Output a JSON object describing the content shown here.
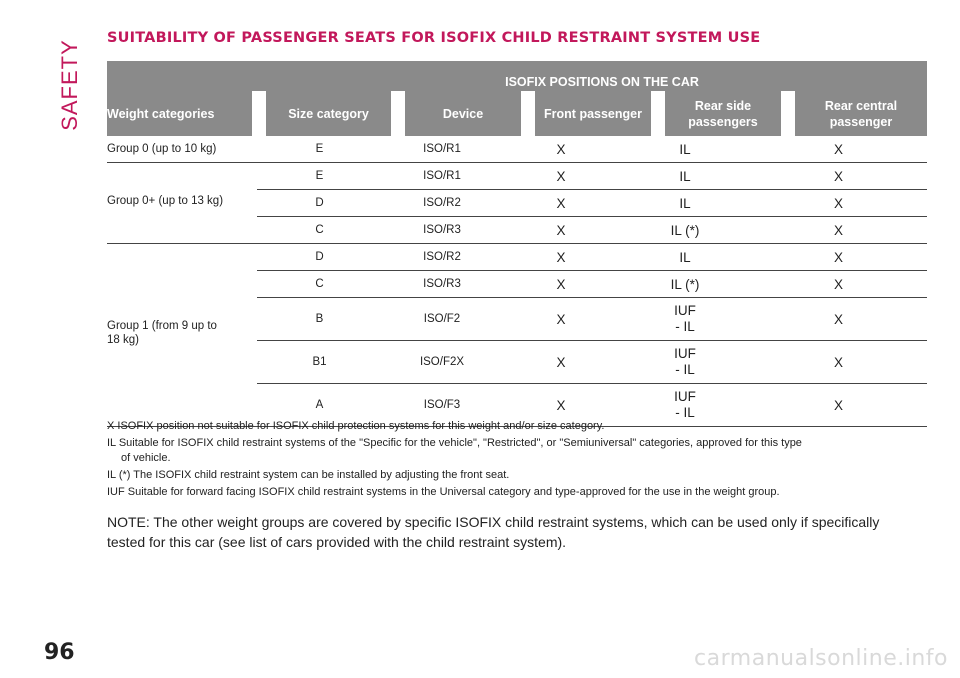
{
  "section_tab": "SAFETY",
  "page_number": "96",
  "watermark": "carmanualsonline.info",
  "title": "SUITABILITY OF PASSENGER SEATS FOR ISOFIX CHILD RESTRAINT SYSTEM USE",
  "table": {
    "band_title": "ISOFIX POSITIONS ON THE CAR",
    "headers": {
      "weight": "Weight categories",
      "size": "Size category",
      "device": "Device",
      "front": "Front passenger",
      "rear_side_1": "Rear side",
      "rear_side_2": "passengers",
      "rear_central_1": "Rear central",
      "rear_central_2": "passenger"
    },
    "groups": {
      "g0": "Group 0 (up to 10 kg)",
      "g0plus": "Group 0+ (up to 13 kg)",
      "g1_line1": "Group 1 (from 9 up to",
      "g1_line2": "18 kg)"
    },
    "rows": [
      {
        "size": "E",
        "device": "ISO/R1",
        "front": "X",
        "rear_side": "IL",
        "rear_side_2": "",
        "central": "X"
      },
      {
        "size": "E",
        "device": "ISO/R1",
        "front": "X",
        "rear_side": "IL",
        "rear_side_2": "",
        "central": "X"
      },
      {
        "size": "D",
        "device": "ISO/R2",
        "front": "X",
        "rear_side": "IL",
        "rear_side_2": "",
        "central": "X"
      },
      {
        "size": "C",
        "device": "ISO/R3",
        "front": "X",
        "rear_side": "IL (*)",
        "rear_side_2": "",
        "central": "X"
      },
      {
        "size": "D",
        "device": "ISO/R2",
        "front": "X",
        "rear_side": "IL",
        "rear_side_2": "",
        "central": "X"
      },
      {
        "size": "C",
        "device": "ISO/R3",
        "front": "X",
        "rear_side": "IL (*)",
        "rear_side_2": "",
        "central": "X"
      },
      {
        "size": "B",
        "device": "ISO/F2",
        "front": "X",
        "rear_side": "IUF",
        "rear_side_2": "- IL",
        "central": "X"
      },
      {
        "size": "B1",
        "device": "ISO/F2X",
        "front": "X",
        "rear_side": "IUF",
        "rear_side_2": "- IL",
        "central": "X"
      },
      {
        "size": "A",
        "device": "ISO/F3",
        "front": "X",
        "rear_side": "IUF",
        "rear_side_2": "- IL",
        "central": "X"
      }
    ]
  },
  "legend": {
    "x": "X ISOFIX position not suitable for ISOFIX child protection systems for this weight and/or size category.",
    "il_1": "IL Suitable for ISOFIX child restraint systems of the \"Specific for the vehicle\", \"Restricted\", or \"Semiuniversal\" categories, approved for this type",
    "il_2": "of vehicle.",
    "il_star": "IL (*) The ISOFIX child restraint system can be installed by adjusting the front seat.",
    "iuf": "IUF Suitable for forward facing ISOFIX child restraint systems in the Universal category and type-approved for the use in the weight group."
  },
  "note_1": "NOTE: The other weight groups are covered by specific ISOFIX child restraint systems, which can be used only if specifically",
  "note_2": "tested for this car (see list of cars provided with the child restraint system).",
  "colors": {
    "accent": "#c2185b",
    "header_band": "#8a8a8a"
  }
}
